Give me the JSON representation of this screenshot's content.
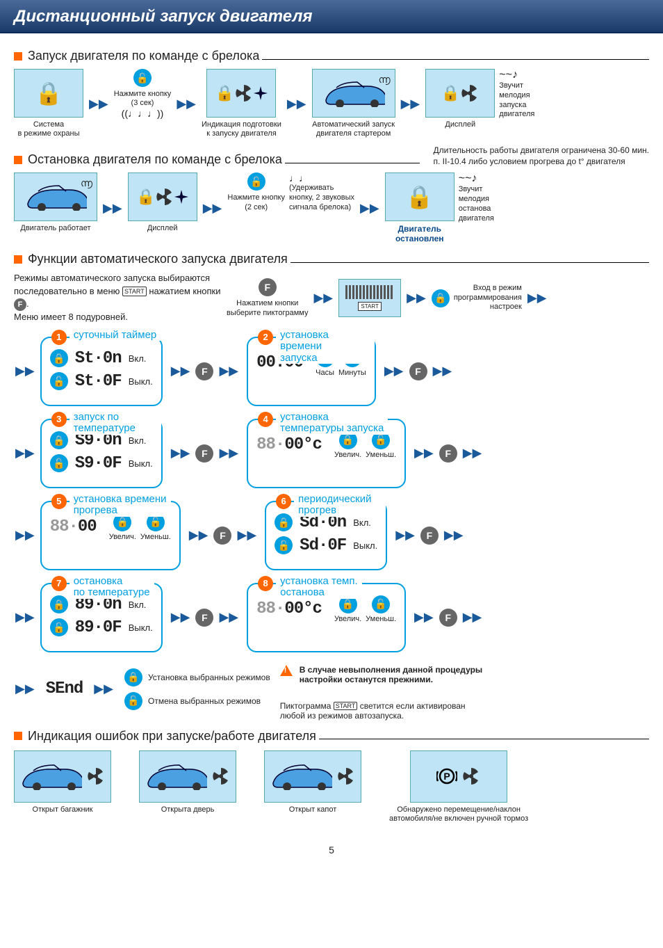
{
  "page_title": "Дистанционный запуск двигателя",
  "page_number": "5",
  "colors": {
    "tile_bg": "#bfe4f5",
    "accent": "#00a0e0",
    "bullet": "#ff6600",
    "header_grad_top": "#4a6a9a",
    "header_grad_bottom": "#1a3a6a"
  },
  "sections": {
    "s1": "Запуск двигателя по команде с брелока",
    "s2": "Остановка двигателя по команде с брелока",
    "s3": "Функции автоматического запуска двигателя",
    "s4": "Индикация ошибок при запуске/работе двигателя"
  },
  "start_row": {
    "cap1": "Система\nв режиме охраны",
    "btn_hint": "Нажмите кнопку\n(3 сек)",
    "cap2": "Индикация подготовки\nк запуску двигателя",
    "cap3": "Автоматический запуск\nдвигателя стартером",
    "cap4": "Дисплей",
    "melody": "Звучит\nмелодия\nзапуска\nдвигателя",
    "tilde": "~~♪"
  },
  "duration_note": "Длительность работы двигателя ограничена 30-60 мин.\nп. II-10.4 либо условием прогрева до t° двигателя",
  "stop_row": {
    "cap1": "Двигатель работает",
    "cap2": "Дисплей",
    "btn_hint": "Нажмите кнопку\n(2 сек)",
    "hold_hint": "(Удерживать\nкнопку, 2 звуковых\nсигнала брелока)",
    "melody": "Звучит\nмелодия\nостанова\nдвигателя",
    "stopped": "Двигатель\nостановлен",
    "tilde": "~~♪",
    "notes": "♩♩"
  },
  "func_intro": {
    "text1": "Режимы автоматического запуска выбираются последовательно в меню ",
    "text2": " нажатием кнопки ",
    "text3": ".\nМеню имеет 8 подуровней.",
    "select_hint": "Нажатием кнопки\nвыберите пиктограмму",
    "enter_hint": "Вход в режим\nпрограммирования\nнастроек",
    "f_label": "F",
    "start_label": "START"
  },
  "menus": {
    "m1": {
      "num": "1",
      "title": "суточный таймер",
      "d_on": "St·0n",
      "on": "Вкл.",
      "d_off": "St·0F",
      "off": "Выкл."
    },
    "m2": {
      "num": "2",
      "title": "установка времени\nзапуска",
      "digits": "00:00",
      "hours": "Часы",
      "minutes": "Минуты"
    },
    "m3": {
      "num": "3",
      "title": "запуск по температуре",
      "d_on": "S9·0n",
      "on": "Вкл.",
      "d_off": "S9·0F",
      "off": "Выкл."
    },
    "m4": {
      "num": "4",
      "title": "установка\nтемпературы запуска",
      "digits_gray": "88·",
      "digits": "00°c",
      "inc": "Увелич.",
      "dec": "Уменьш."
    },
    "m5": {
      "num": "5",
      "title": "установка времени\nпрогрева",
      "digits_gray": "88·",
      "digits": "00",
      "inc": "Увелич.",
      "dec": "Уменьш."
    },
    "m6": {
      "num": "6",
      "title": "периодический прогрев",
      "d_on": "Sd·0n",
      "on": "Вкл.",
      "d_off": "Sd·0F",
      "off": "Выкл."
    },
    "m7": {
      "num": "7",
      "title": "остановка\nпо температуре",
      "d_on": "89·0n",
      "on": "Вкл.",
      "d_off": "89·0F",
      "off": "Выкл."
    },
    "m8": {
      "num": "8",
      "title": "установка темп.\nостанова",
      "digits_gray": "88·",
      "digits": "00°c",
      "inc": "Увелич.",
      "dec": "Уменьш."
    }
  },
  "final": {
    "send_digits": "SEnd",
    "set_label": "Установка выбранных режимов",
    "cancel_label": "Отмена выбранных режимов",
    "warn_text": "В случае невыполнения данной процедуры\nнастройки останутся прежними.",
    "pict_text1": "Пиктограмма ",
    "pict_text2": " светится если активирован\nлюбой из режимов автозапуска."
  },
  "errors": {
    "e1": "Открыт багажник",
    "e2": "Открыта дверь",
    "e3": "Открыт капот",
    "e4": "Обнаружено перемещение/наклон\nавтомобиля/не включен ручной тормоз"
  }
}
